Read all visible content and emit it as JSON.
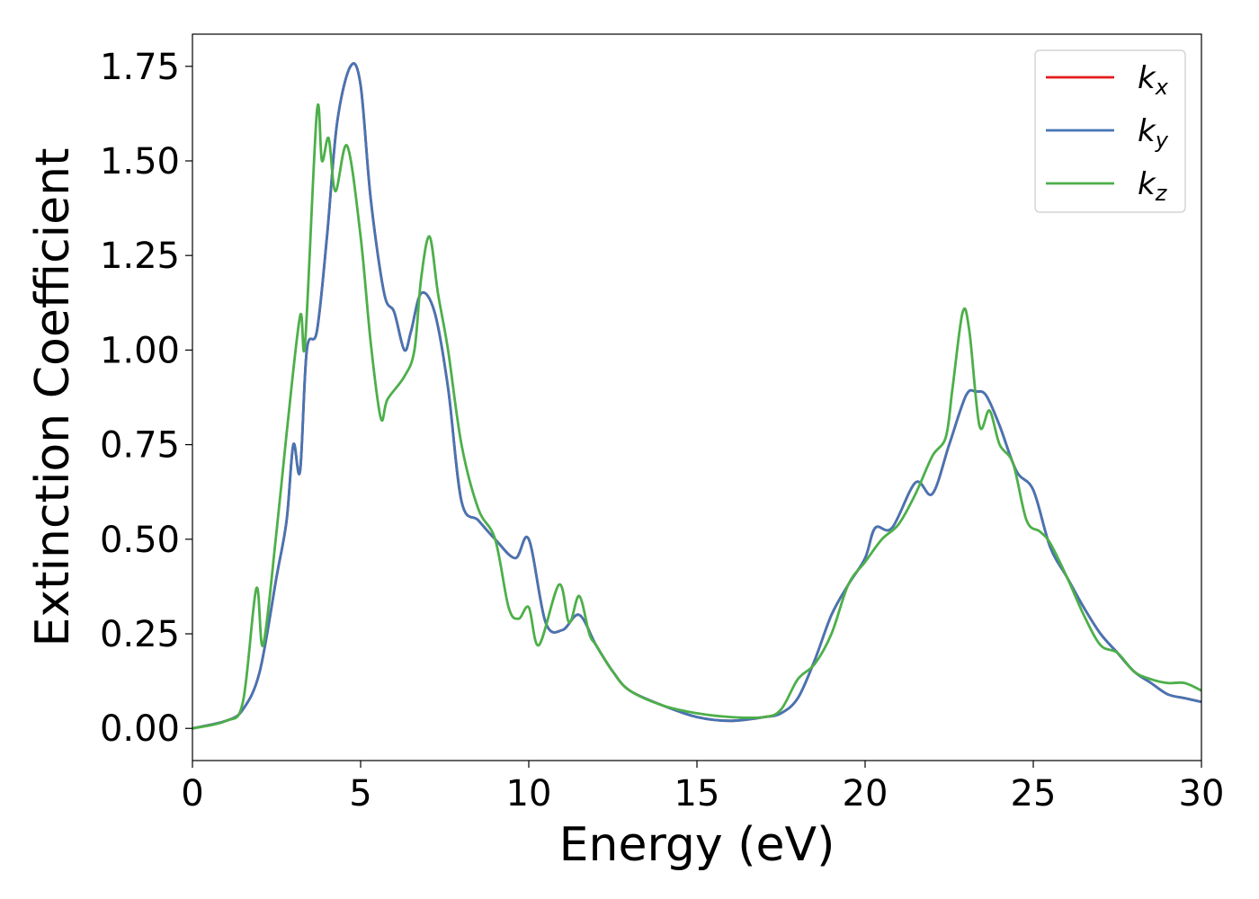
{
  "chart_data": {
    "type": "line",
    "title": "",
    "xlabel": "Energy (eV)",
    "ylabel": "Extinction Coefficient",
    "xlim": [
      0,
      30
    ],
    "ylim": [
      -0.085,
      1.835
    ],
    "xticks": [
      0,
      5,
      10,
      15,
      20,
      25,
      30
    ],
    "xtick_labels": [
      "0",
      "5",
      "10",
      "15",
      "20",
      "25",
      "30"
    ],
    "yticks": [
      0.0,
      0.25,
      0.5,
      0.75,
      1.0,
      1.25,
      1.5,
      1.75
    ],
    "ytick_labels": [
      "0.00",
      "0.25",
      "0.50",
      "0.75",
      "1.00",
      "1.25",
      "1.50",
      "1.75"
    ],
    "grid": false,
    "legend_position": "top-right",
    "series": [
      {
        "name": "k_x",
        "label_main": "k",
        "label_sub": "x",
        "color": "#e41a1c",
        "x": [
          0,
          1,
          1.5,
          2,
          2.5,
          2.8,
          3,
          3.2,
          3.4,
          3.7,
          4,
          4.3,
          4.7,
          5,
          5.3,
          5.7,
          6,
          6.3,
          6.5,
          6.8,
          7.2,
          7.6,
          8,
          8.5,
          9,
          9.6,
          10,
          10.5,
          11,
          11.5,
          12,
          12.5,
          13,
          14,
          15,
          16,
          17,
          17.5,
          18,
          18.5,
          19,
          19.5,
          20,
          20.3,
          20.8,
          21.5,
          22,
          22.5,
          23,
          23.3,
          23.6,
          24,
          24.5,
          25,
          25.5,
          26,
          26.5,
          27,
          27.5,
          28,
          28.5,
          29,
          29.5,
          30
        ],
        "y": [
          0,
          0.02,
          0.05,
          0.15,
          0.4,
          0.55,
          0.75,
          0.68,
          1.0,
          1.05,
          1.3,
          1.6,
          1.75,
          1.7,
          1.4,
          1.15,
          1.1,
          1.0,
          1.05,
          1.15,
          1.1,
          0.9,
          0.6,
          0.55,
          0.5,
          0.45,
          0.5,
          0.28,
          0.26,
          0.3,
          0.22,
          0.15,
          0.1,
          0.06,
          0.03,
          0.02,
          0.03,
          0.04,
          0.08,
          0.18,
          0.3,
          0.38,
          0.45,
          0.53,
          0.53,
          0.65,
          0.62,
          0.75,
          0.88,
          0.89,
          0.88,
          0.8,
          0.68,
          0.63,
          0.48,
          0.4,
          0.32,
          0.25,
          0.2,
          0.15,
          0.12,
          0.09,
          0.08,
          0.07
        ]
      },
      {
        "name": "k_y",
        "label_main": "k",
        "label_sub": "y",
        "color": "#4575b4",
        "x": [
          0,
          1,
          1.5,
          2,
          2.5,
          2.8,
          3,
          3.2,
          3.4,
          3.7,
          4,
          4.3,
          4.7,
          5,
          5.3,
          5.7,
          6,
          6.3,
          6.5,
          6.8,
          7.2,
          7.6,
          8,
          8.5,
          9,
          9.6,
          10,
          10.5,
          11,
          11.5,
          12,
          12.5,
          13,
          14,
          15,
          16,
          17,
          17.5,
          18,
          18.5,
          19,
          19.5,
          20,
          20.3,
          20.8,
          21.5,
          22,
          22.5,
          23,
          23.3,
          23.6,
          24,
          24.5,
          25,
          25.5,
          26,
          26.5,
          27,
          27.5,
          28,
          28.5,
          29,
          29.5,
          30
        ],
        "y": [
          0,
          0.02,
          0.05,
          0.15,
          0.4,
          0.55,
          0.75,
          0.68,
          1.0,
          1.05,
          1.3,
          1.6,
          1.75,
          1.7,
          1.4,
          1.15,
          1.1,
          1.0,
          1.05,
          1.15,
          1.1,
          0.9,
          0.6,
          0.55,
          0.5,
          0.45,
          0.5,
          0.28,
          0.26,
          0.3,
          0.22,
          0.15,
          0.1,
          0.06,
          0.03,
          0.02,
          0.03,
          0.04,
          0.08,
          0.18,
          0.3,
          0.38,
          0.45,
          0.53,
          0.53,
          0.65,
          0.62,
          0.75,
          0.88,
          0.89,
          0.88,
          0.8,
          0.68,
          0.63,
          0.48,
          0.4,
          0.32,
          0.25,
          0.2,
          0.15,
          0.12,
          0.09,
          0.08,
          0.07
        ]
      },
      {
        "name": "k_z",
        "label_main": "k",
        "label_sub": "z",
        "color": "#4daf4a",
        "x": [
          0,
          1,
          1.5,
          1.9,
          2.1,
          2.5,
          2.8,
          3.2,
          3.35,
          3.7,
          3.85,
          4.05,
          4.25,
          4.6,
          5,
          5.3,
          5.6,
          5.8,
          6.3,
          6.6,
          6.8,
          7.05,
          7.3,
          7.6,
          8,
          8.5,
          9,
          9.4,
          9.7,
          10,
          10.3,
          10.9,
          11.2,
          11.5,
          11.8,
          12,
          12.5,
          13,
          14,
          15,
          16,
          17,
          17.5,
          18,
          18.5,
          19,
          19.5,
          20,
          20.5,
          21,
          21.5,
          22,
          22.4,
          22.6,
          22.9,
          23.1,
          23.4,
          23.7,
          24,
          24.4,
          24.8,
          25.2,
          25.5,
          26,
          26.5,
          27,
          27.5,
          28,
          28.5,
          29,
          29.5,
          30
        ],
        "y": [
          0,
          0.02,
          0.07,
          0.37,
          0.22,
          0.52,
          0.78,
          1.09,
          1.02,
          1.63,
          1.5,
          1.56,
          1.42,
          1.54,
          1.3,
          1.02,
          0.82,
          0.87,
          0.93,
          1.0,
          1.19,
          1.3,
          1.15,
          1.0,
          0.75,
          0.58,
          0.5,
          0.32,
          0.29,
          0.32,
          0.22,
          0.38,
          0.28,
          0.35,
          0.25,
          0.22,
          0.15,
          0.1,
          0.06,
          0.04,
          0.03,
          0.03,
          0.05,
          0.13,
          0.17,
          0.25,
          0.38,
          0.44,
          0.5,
          0.54,
          0.62,
          0.72,
          0.77,
          0.9,
          1.1,
          1.05,
          0.8,
          0.84,
          0.75,
          0.7,
          0.55,
          0.52,
          0.49,
          0.4,
          0.3,
          0.22,
          0.2,
          0.15,
          0.13,
          0.12,
          0.12,
          0.1
        ]
      }
    ]
  }
}
